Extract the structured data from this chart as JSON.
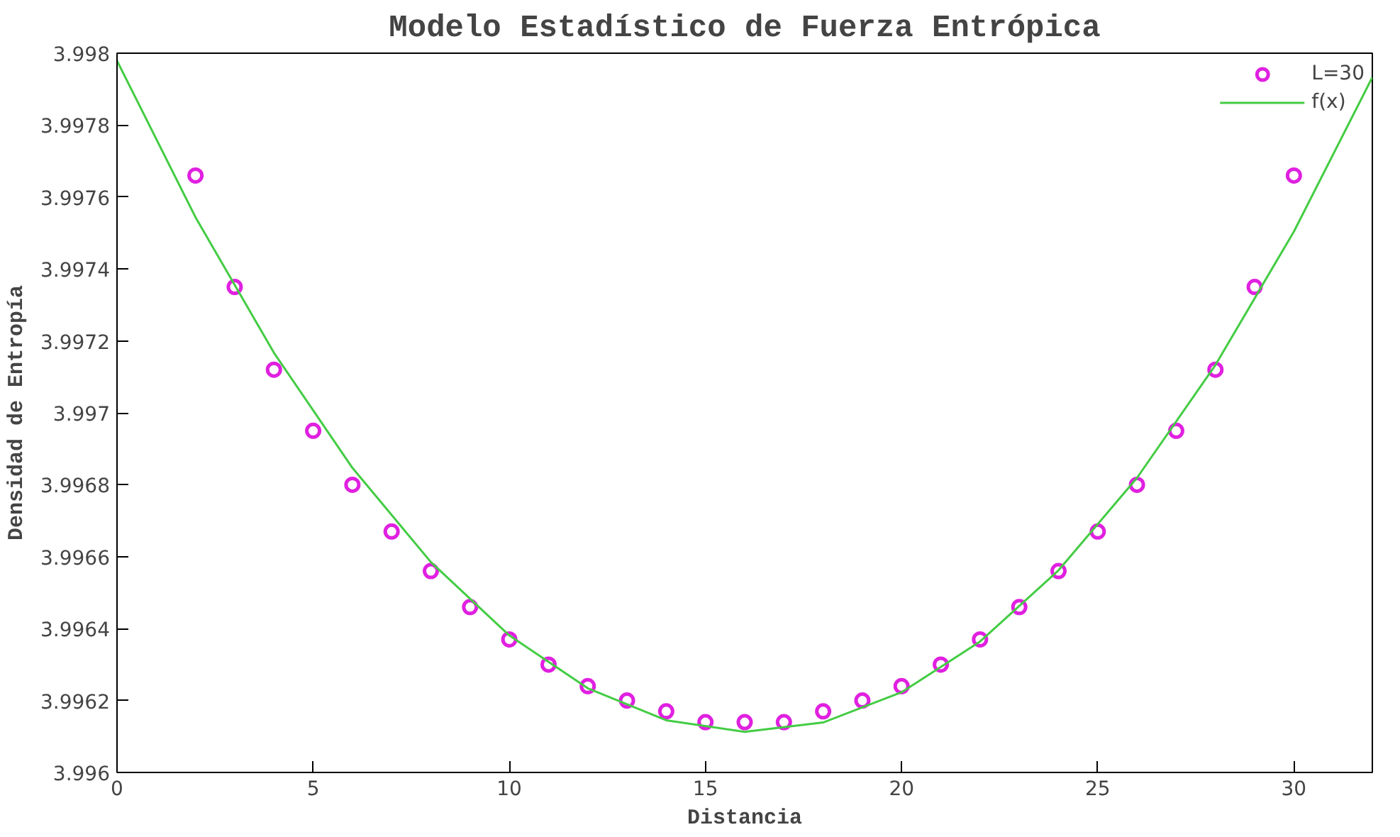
{
  "chart_data": {
    "type": "scatter",
    "title": "Modelo Estadístico de Fuerza Entrópica",
    "xlabel": "Distancia",
    "ylabel": "Densidad de Entropía",
    "xlim": [
      0,
      32
    ],
    "xticks": [
      0,
      5,
      10,
      15,
      20,
      25,
      30
    ],
    "ylim": [
      3.996,
      3.998
    ],
    "yticks": [
      3.996,
      3.9962,
      3.9964,
      3.9966,
      3.9968,
      3.997,
      3.9972,
      3.9974,
      3.9976,
      3.9978,
      3.998
    ],
    "grid": false,
    "legend": "top right",
    "series": [
      {
        "name": "L=30",
        "marker": "circle",
        "color": "#e020e0",
        "x": [
          2,
          3,
          4,
          5,
          6,
          7,
          8,
          9,
          10,
          11,
          12,
          13,
          14,
          15,
          16,
          17,
          18,
          19,
          20,
          21,
          22,
          23,
          24,
          25,
          26,
          27,
          28,
          29,
          30
        ],
        "values": [
          3.99766,
          3.99735,
          3.99712,
          3.99695,
          3.9968,
          3.99667,
          3.99656,
          3.99646,
          3.99637,
          3.9963,
          3.99624,
          3.9962,
          3.99617,
          3.99614,
          3.99614,
          3.99614,
          3.99617,
          3.9962,
          3.99624,
          3.9963,
          3.99637,
          3.99646,
          3.99656,
          3.99667,
          3.9968,
          3.99695,
          3.99712,
          3.99735,
          3.99766
        ]
      },
      {
        "name": "f(x)",
        "type": "line",
        "color": "#44cc44",
        "marker": "none",
        "line_style": "solid",
        "x": [
          0,
          2,
          4,
          6,
          8,
          10,
          12,
          14,
          16,
          18,
          20,
          22,
          24,
          26,
          28,
          30,
          32
        ],
        "values": [
          3.997979,
          3.997544,
          3.997167,
          3.996847,
          3.996585,
          3.996381,
          3.996234,
          3.996145,
          3.996113,
          3.996139,
          3.996223,
          3.996364,
          3.996562,
          3.996819,
          3.997133,
          3.997504,
          3.997933
        ]
      }
    ]
  }
}
